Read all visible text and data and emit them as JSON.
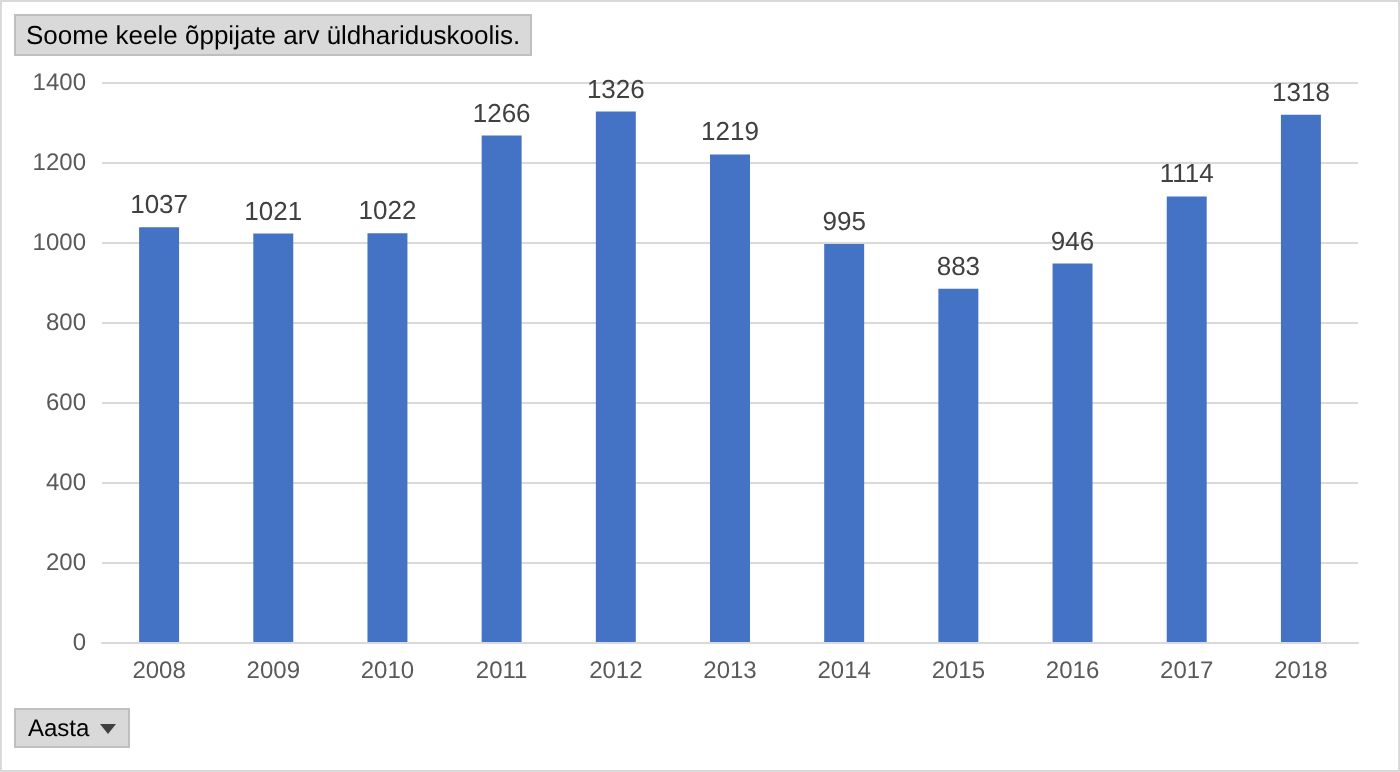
{
  "chart_data": {
    "type": "bar",
    "title": "Soome keele õppijate arv üldhariduskoolis.",
    "xlabel": "Aasta",
    "categories": [
      "2008",
      "2009",
      "2010",
      "2011",
      "2012",
      "2013",
      "2014",
      "2015",
      "2016",
      "2017",
      "2018"
    ],
    "values": [
      1037,
      1021,
      1022,
      1266,
      1326,
      1219,
      995,
      883,
      946,
      1114,
      1318
    ],
    "color": "#4472c4",
    "ylim": [
      0,
      1400
    ],
    "yticks": [
      0,
      200,
      400,
      600,
      800,
      1000,
      1200,
      1400
    ],
    "grid": "y",
    "data_labels": true
  }
}
